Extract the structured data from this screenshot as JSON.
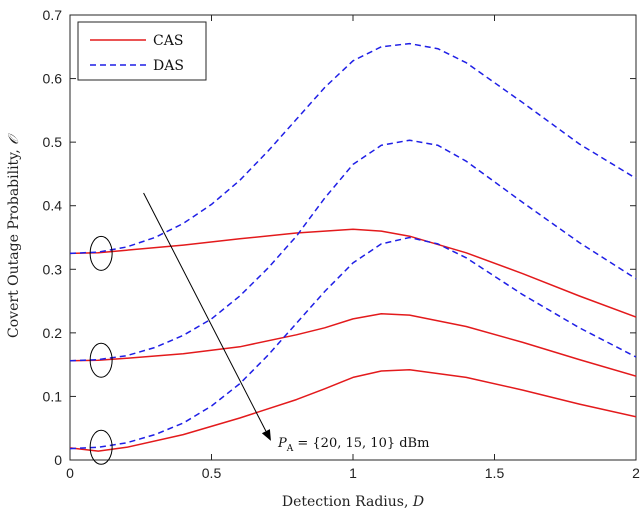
{
  "chart_data": {
    "type": "line",
    "xlabel": "Detection Radius, D",
    "ylabel": "Covert Outage Probability, 𝒪",
    "xlim": [
      0,
      2
    ],
    "ylim": [
      0,
      0.7
    ],
    "xticks": [
      0,
      0.5,
      1,
      1.5,
      2
    ],
    "xtick_labels": [
      "0",
      "0.5",
      "1",
      "1.5",
      "2"
    ],
    "yticks": [
      0,
      0.1,
      0.2,
      0.3,
      0.4,
      0.5,
      0.6,
      0.7
    ],
    "ytick_labels": [
      "0",
      "0.1",
      "0.2",
      "0.3",
      "0.4",
      "0.5",
      "0.6",
      "0.7"
    ],
    "grid": false,
    "legend_position": "top-left",
    "legend": [
      {
        "label": "CAS",
        "color": "#e31a1c",
        "style": "solid"
      },
      {
        "label": "DAS",
        "color": "#1f1fe6",
        "style": "dashed"
      }
    ],
    "annotation": "P_A = {20, 15, 10} dBm",
    "annotation_parts": {
      "sym": "P",
      "sub": "A",
      "rest": " = {20, 15, 10} dBm"
    },
    "series": [
      {
        "group": "CAS",
        "color": "#e31a1c",
        "style": "solid",
        "x": [
          0,
          0.1,
          0.2,
          0.4,
          0.6,
          0.8,
          1.0,
          1.1,
          1.2,
          1.4,
          1.6,
          1.8,
          2.0
        ],
        "y": [
          0.325,
          0.326,
          0.33,
          0.338,
          0.348,
          0.357,
          0.363,
          0.36,
          0.352,
          0.326,
          0.293,
          0.258,
          0.225
        ]
      },
      {
        "group": "CAS",
        "color": "#e31a1c",
        "style": "solid",
        "x": [
          0,
          0.1,
          0.2,
          0.4,
          0.6,
          0.8,
          0.9,
          1.0,
          1.1,
          1.2,
          1.4,
          1.6,
          1.8,
          2.0
        ],
        "y": [
          0.156,
          0.157,
          0.16,
          0.167,
          0.178,
          0.197,
          0.208,
          0.222,
          0.23,
          0.228,
          0.21,
          0.185,
          0.158,
          0.132
        ]
      },
      {
        "group": "CAS",
        "color": "#e31a1c",
        "style": "solid",
        "x": [
          0,
          0.1,
          0.2,
          0.4,
          0.6,
          0.8,
          0.9,
          1.0,
          1.1,
          1.2,
          1.4,
          1.6,
          1.8,
          2.0
        ],
        "y": [
          0.019,
          0.014,
          0.02,
          0.04,
          0.066,
          0.095,
          0.112,
          0.13,
          0.14,
          0.142,
          0.13,
          0.11,
          0.088,
          0.068
        ]
      },
      {
        "group": "DAS",
        "color": "#1f1fe6",
        "style": "dashed",
        "x": [
          0,
          0.1,
          0.2,
          0.3,
          0.4,
          0.5,
          0.6,
          0.7,
          0.8,
          0.9,
          1.0,
          1.1,
          1.2,
          1.3,
          1.4,
          1.6,
          1.8,
          2.0
        ],
        "y": [
          0.325,
          0.327,
          0.335,
          0.35,
          0.372,
          0.402,
          0.44,
          0.486,
          0.536,
          0.586,
          0.628,
          0.65,
          0.655,
          0.647,
          0.625,
          0.562,
          0.497,
          0.443
        ]
      },
      {
        "group": "DAS",
        "color": "#1f1fe6",
        "style": "dashed",
        "x": [
          0,
          0.1,
          0.2,
          0.3,
          0.4,
          0.5,
          0.6,
          0.7,
          0.8,
          0.9,
          1.0,
          1.1,
          1.2,
          1.3,
          1.4,
          1.6,
          1.8,
          2.0
        ],
        "y": [
          0.156,
          0.158,
          0.164,
          0.177,
          0.196,
          0.222,
          0.258,
          0.302,
          0.352,
          0.412,
          0.465,
          0.495,
          0.503,
          0.495,
          0.47,
          0.405,
          0.342,
          0.285
        ]
      },
      {
        "group": "DAS",
        "color": "#1f1fe6",
        "style": "dashed",
        "x": [
          0,
          0.1,
          0.2,
          0.3,
          0.4,
          0.5,
          0.6,
          0.7,
          0.8,
          0.9,
          1.0,
          1.1,
          1.2,
          1.3,
          1.4,
          1.6,
          1.8,
          2.0
        ],
        "y": [
          0.018,
          0.02,
          0.027,
          0.04,
          0.058,
          0.085,
          0.12,
          0.165,
          0.215,
          0.265,
          0.31,
          0.34,
          0.35,
          0.34,
          0.318,
          0.26,
          0.208,
          0.162
        ]
      }
    ],
    "ellipse_markers": [
      {
        "x": 0.11,
        "y": 0.325
      },
      {
        "x": 0.11,
        "y": 0.157
      },
      {
        "x": 0.11,
        "y": 0.02
      }
    ],
    "arrow": {
      "from": [
        0.26,
        0.42
      ],
      "to": [
        0.71,
        0.03
      ]
    }
  }
}
